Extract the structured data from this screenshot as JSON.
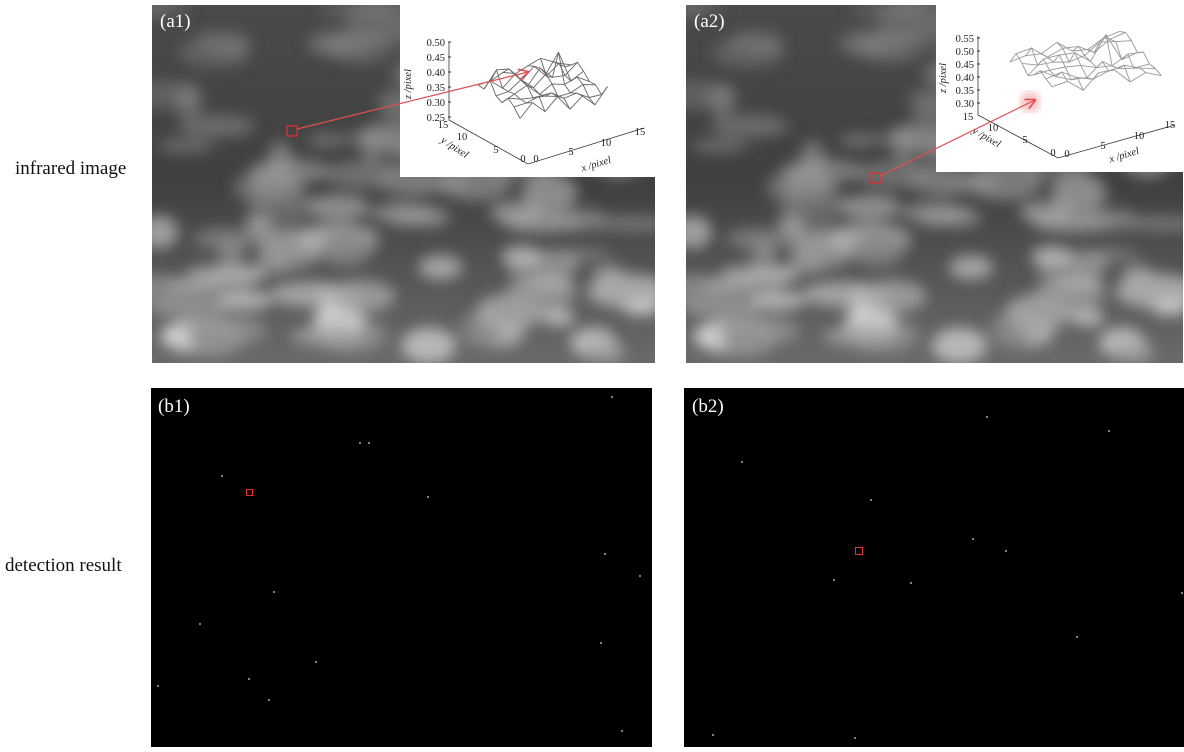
{
  "row_labels": [
    "infrared image",
    "detection result"
  ],
  "panels": [
    {
      "label": "(a1)"
    },
    {
      "label": "(a2)"
    },
    {
      "label": "(b1)"
    },
    {
      "label": "(b2)"
    }
  ],
  "insets": [
    {
      "z_label": "z /pixel",
      "y_label": "y /pixel",
      "x_label": "x /pixel",
      "z_ticks": [
        "0.50",
        "0.45",
        "0.40",
        "0.35",
        "0.30",
        "0.25"
      ],
      "y_ticks": [
        "15",
        "10",
        "5",
        "0"
      ],
      "x_ticks": [
        "0",
        "5",
        "10",
        "15"
      ]
    },
    {
      "z_label": "z /pixel",
      "y_label": "y /pixel",
      "x_label": "x /pixel",
      "z_ticks": [
        "0.55",
        "0.50",
        "0.45",
        "0.40",
        "0.35",
        "0.30"
      ],
      "y_ticks": [
        "15",
        "10",
        "5",
        "0"
      ],
      "x_ticks": [
        "0",
        "5",
        "10",
        "15"
      ]
    }
  ]
}
